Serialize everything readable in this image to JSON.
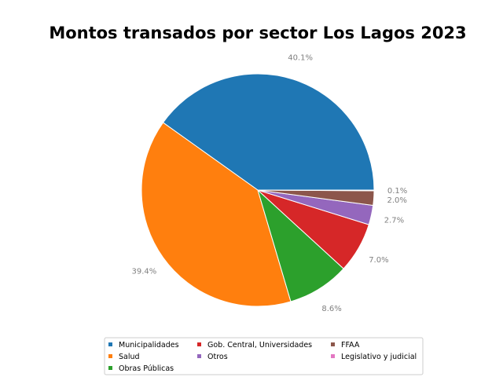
{
  "chart_data": {
    "type": "pie",
    "title": "Montos transados por sector Los Lagos 2023",
    "labels": [
      "Municipalidades",
      "Salud",
      "Obras Públicas",
      "Gob. Central, Universidades",
      "Otros",
      "FFAA",
      "Legislativo y judicial"
    ],
    "values": [
      40.1,
      39.4,
      8.6,
      7.0,
      2.7,
      2.0,
      0.1
    ],
    "value_labels": [
      "40.1%",
      "39.4%",
      "8.6%",
      "7.0%",
      "2.7%",
      "2.0%",
      "0.1%"
    ],
    "colors": [
      "#1f77b4",
      "#ff7f0e",
      "#2ca02c",
      "#d62728",
      "#9467bd",
      "#8c564b",
      "#e377c2"
    ],
    "start_angle": "0 degrees (3 o'clock), counter-clockwise",
    "legend_position": "bottom-center"
  }
}
